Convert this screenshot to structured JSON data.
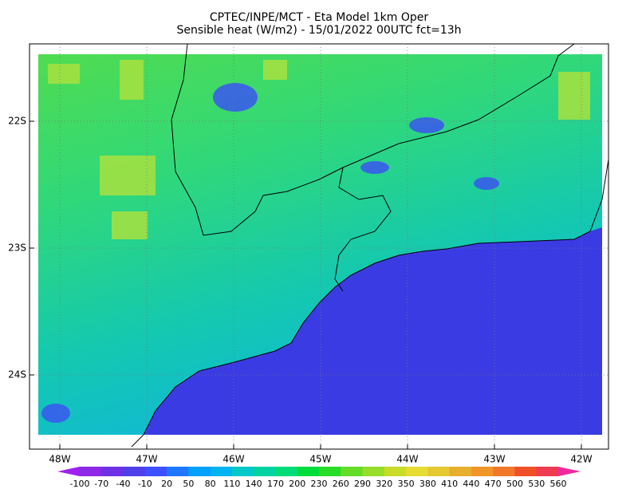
{
  "header": {
    "title": "CPTEC/INPE/MCT -  Eta Model 1km Oper",
    "subtitle": "Sensible heat (W/m2) - 15/01/2022 00UTC fct=13h"
  },
  "map": {
    "lat_labels": [
      "22S",
      "23S",
      "24S"
    ],
    "lon_labels": [
      "48W",
      "47W",
      "46W",
      "45W",
      "44W",
      "43W",
      "42W"
    ]
  },
  "colorbar": {
    "levels": [
      -100,
      -70,
      -40,
      -10,
      20,
      50,
      80,
      110,
      140,
      170,
      200,
      230,
      260,
      290,
      320,
      350,
      380,
      410,
      440,
      470,
      500,
      530,
      560
    ],
    "colors": [
      "#a020f0",
      "#8c28e6",
      "#6e32e6",
      "#5040ea",
      "#3c50ff",
      "#1e78ff",
      "#00a0ff",
      "#00b4f0",
      "#00c8c8",
      "#00d2a0",
      "#00dc78",
      "#00dc3c",
      "#28dc28",
      "#64dc28",
      "#96dc28",
      "#c8dc28",
      "#e6dc32",
      "#e6c832",
      "#e6af2d",
      "#f09628",
      "#f07828",
      "#f05028",
      "#f03c50",
      "#f028a0"
    ]
  }
}
